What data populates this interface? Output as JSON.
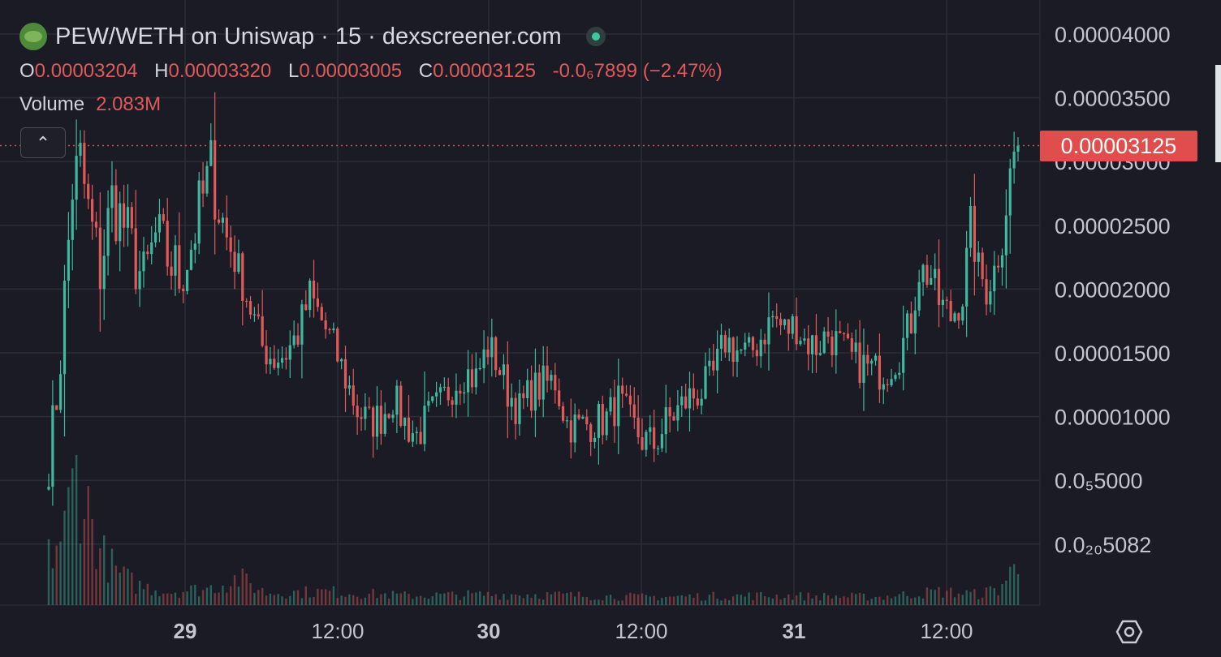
{
  "header": {
    "title": "PEW/WETH on Uniswap · 15 · dexscreener.com",
    "ohlc": [
      {
        "key": "O",
        "value": "0.00003204"
      },
      {
        "key": "H",
        "value": "0.00003320"
      },
      {
        "key": "L",
        "value": "0.00003005"
      },
      {
        "key": "C",
        "value": "0.00003125"
      }
    ],
    "change": "-0.0₆7899 (−2.47%)",
    "volume_label": "Volume",
    "volume_value": "2.083M",
    "collapse_glyph": "⌃"
  },
  "icons": {
    "logo": "pew-frog-logo",
    "status": "live-status-dot",
    "collapse": "chevron-up-icon",
    "settings": "settings-icon"
  },
  "colors": {
    "background": "#1a1b24",
    "up": "#3fb8a0",
    "down": "#e05a5a",
    "grid": "#2a2c37",
    "last_price": "#e04d4d"
  },
  "chart_data": {
    "type": "candlestick",
    "title": "PEW/WETH on Uniswap · 15 · dexscreener.com",
    "interval": "15",
    "y_ticks": [
      {
        "value": 4e-05,
        "label": "0.00004000"
      },
      {
        "value": 3.5e-05,
        "label": "0.00003500"
      },
      {
        "value": 3e-05,
        "label": "0.00003000"
      },
      {
        "value": 2.5e-05,
        "label": "0.00002500"
      },
      {
        "value": 2e-05,
        "label": "0.00002000"
      },
      {
        "value": 1.5e-05,
        "label": "0.00001500"
      },
      {
        "value": 1e-05,
        "label": "0.00001000"
      },
      {
        "value": 5e-06,
        "label": "0.0₅5000"
      },
      {
        "value": 5.082e-22,
        "label": "0.0₂₀5082"
      }
    ],
    "ylim": [
      0,
      4.1e-05
    ],
    "x_ticks": [
      {
        "label": "29",
        "bold": true
      },
      {
        "label": "12:00",
        "bold": false
      },
      {
        "label": "30",
        "bold": true
      },
      {
        "label": "12:00",
        "bold": false
      },
      {
        "label": "31",
        "bold": true
      },
      {
        "label": "12:00",
        "bold": false
      }
    ],
    "last_price": 3.125e-05,
    "last_price_label": "0.00003125",
    "grid": true,
    "path_keypoints": [
      [
        0,
        5.2e-06
      ],
      [
        3,
        1.5e-05
      ],
      [
        6,
        2.8e-05
      ],
      [
        8,
        3e-05
      ],
      [
        10,
        2.6e-05
      ],
      [
        13,
        2.15e-05
      ],
      [
        16,
        2.7e-05
      ],
      [
        19,
        2.5e-05
      ],
      [
        21,
        2.3e-05
      ],
      [
        24,
        2.05e-05
      ],
      [
        27,
        2.4e-05
      ],
      [
        30,
        2.25e-05
      ],
      [
        33,
        2.1e-05
      ],
      [
        36,
        2.35e-05
      ],
      [
        38,
        2.6e-05
      ],
      [
        41,
        2.95e-05
      ],
      [
        43,
        2.65e-05
      ],
      [
        45,
        2.4e-05
      ],
      [
        48,
        2.15e-05
      ],
      [
        51,
        1.85e-05
      ],
      [
        54,
        1.55e-05
      ],
      [
        57,
        1.45e-05
      ],
      [
        60,
        1.5e-05
      ],
      [
        63,
        1.65e-05
      ],
      [
        66,
        1.95e-05
      ],
      [
        69,
        1.75e-05
      ],
      [
        72,
        1.55e-05
      ],
      [
        75,
        1.3e-05
      ],
      [
        78,
        1.05e-05
      ],
      [
        81,
        9.5e-06
      ],
      [
        84,
        1e-05
      ],
      [
        87,
        1.15e-05
      ],
      [
        90,
        9.5e-06
      ],
      [
        93,
        8.5e-06
      ],
      [
        96,
        1e-05
      ],
      [
        99,
        1.1e-05
      ],
      [
        102,
        1.25e-05
      ],
      [
        105,
        1.35e-05
      ],
      [
        108,
        1.3e-05
      ],
      [
        111,
        1.55e-05
      ],
      [
        113,
        1.45e-05
      ],
      [
        116,
        1.2e-05
      ],
      [
        119,
        1.05e-05
      ],
      [
        122,
        1.2e-05
      ],
      [
        125,
        1.25e-05
      ],
      [
        128,
        1.28e-05
      ],
      [
        131,
        9.5e-06
      ],
      [
        134,
        9.2e-06
      ],
      [
        137,
        9.5e-06
      ],
      [
        141,
        9.8e-06
      ],
      [
        144,
        1.12e-05
      ],
      [
        147,
        9.5e-06
      ],
      [
        150,
        8.2e-06
      ],
      [
        153,
        7.8e-06
      ],
      [
        156,
        9.5e-06
      ],
      [
        159,
        1.05e-05
      ],
      [
        162,
        1.15e-05
      ],
      [
        165,
        1.2e-05
      ],
      [
        168,
        1.32e-05
      ],
      [
        171,
        1.6e-05
      ],
      [
        174,
        1.52e-05
      ],
      [
        177,
        1.48e-05
      ],
      [
        180,
        1.62e-05
      ],
      [
        183,
        1.78e-05
      ],
      [
        186,
        1.68e-05
      ],
      [
        189,
        1.72e-05
      ],
      [
        191,
        1.6e-05
      ],
      [
        194,
        1.55e-05
      ],
      [
        197,
        1.65e-05
      ],
      [
        200,
        1.55e-05
      ],
      [
        203,
        1.45e-05
      ],
      [
        206,
        1.4e-05
      ],
      [
        209,
        1.35e-05
      ],
      [
        212,
        1.38e-05
      ],
      [
        215,
        1.5e-05
      ],
      [
        218,
        1.75e-05
      ],
      [
        220,
        2.15e-05
      ],
      [
        223,
        2.1e-05
      ],
      [
        225,
        1.9e-05
      ],
      [
        228,
        1.78e-05
      ],
      [
        231,
        1.95e-05
      ],
      [
        233,
        2.5e-05
      ],
      [
        235,
        2.15e-05
      ],
      [
        237,
        2e-05
      ],
      [
        239,
        2.15e-05
      ],
      [
        241,
        2.4e-05
      ],
      [
        243,
        2.9e-05
      ],
      [
        245,
        3.22e-05
      ]
    ],
    "volume_keypoints": [
      [
        0,
        0.35
      ],
      [
        4,
        0.55
      ],
      [
        7,
        1.0
      ],
      [
        10,
        0.7
      ],
      [
        13,
        0.4
      ],
      [
        17,
        0.25
      ],
      [
        22,
        0.15
      ],
      [
        30,
        0.1
      ],
      [
        40,
        0.12
      ],
      [
        48,
        0.2
      ],
      [
        55,
        0.09
      ],
      [
        70,
        0.1
      ],
      [
        90,
        0.07
      ],
      [
        120,
        0.08
      ],
      [
        150,
        0.06
      ],
      [
        180,
        0.07
      ],
      [
        210,
        0.06
      ],
      [
        225,
        0.1
      ],
      [
        235,
        0.08
      ],
      [
        240,
        0.12
      ],
      [
        245,
        0.3
      ]
    ]
  }
}
